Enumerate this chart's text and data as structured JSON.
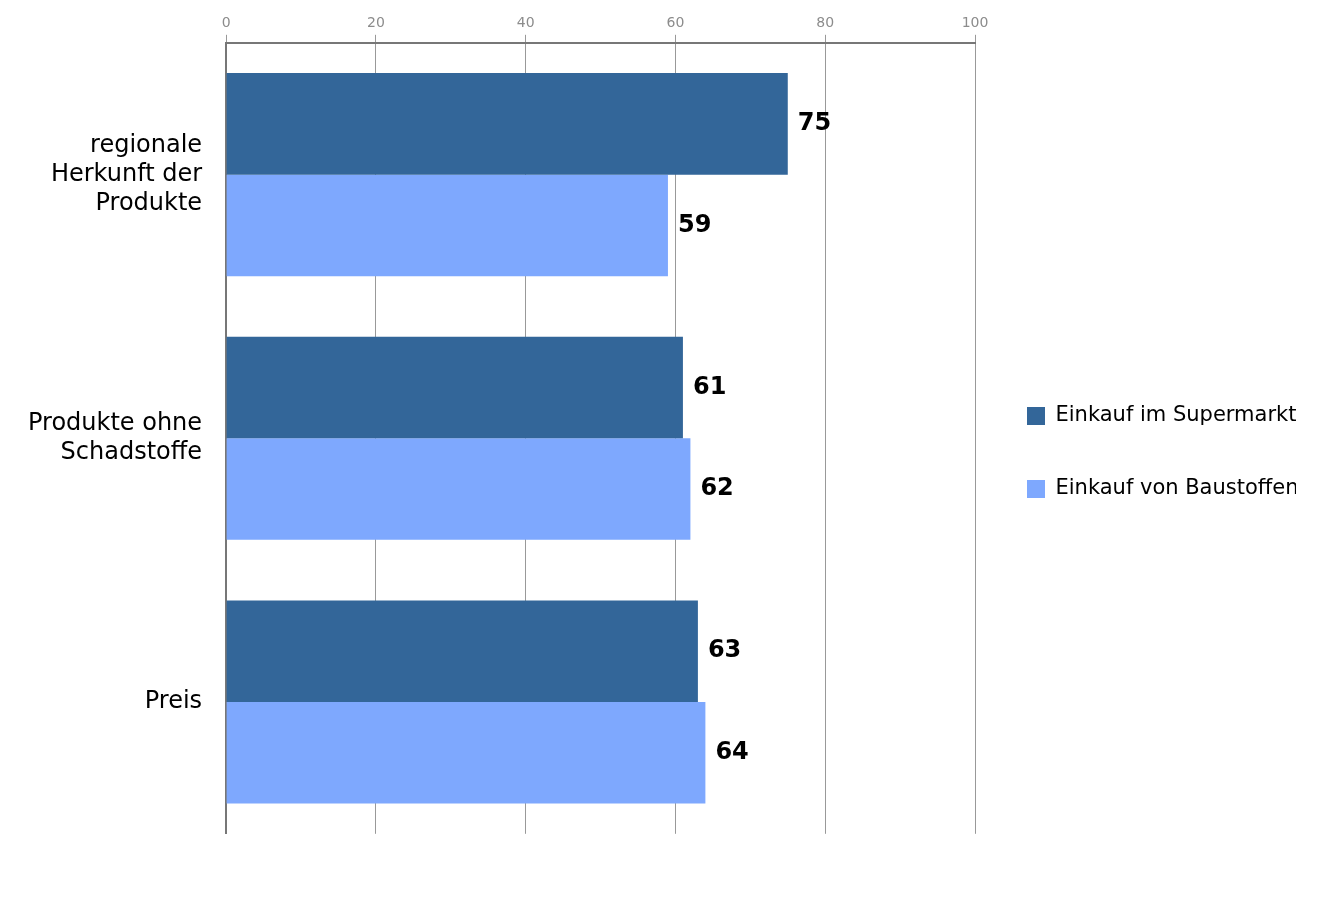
{
  "chart_data": {
    "type": "bar",
    "orientation": "horizontal",
    "categories": [
      "regionale Herkunft der Produkte",
      "Produkte ohne Schadstoffe",
      "Preis"
    ],
    "series": [
      {
        "name": "Einkauf im Supermarkt",
        "color": "#336699",
        "values": [
          75,
          61,
          63
        ]
      },
      {
        "name": "Einkauf von Baustoffen",
        "color": "#7ea8fe",
        "values": [
          59,
          62,
          64
        ]
      }
    ],
    "xlim": [
      0,
      100
    ],
    "xticks": [
      0,
      20,
      40,
      60,
      80,
      100
    ],
    "grid": "x",
    "legend": "right",
    "data_labels": true
  }
}
